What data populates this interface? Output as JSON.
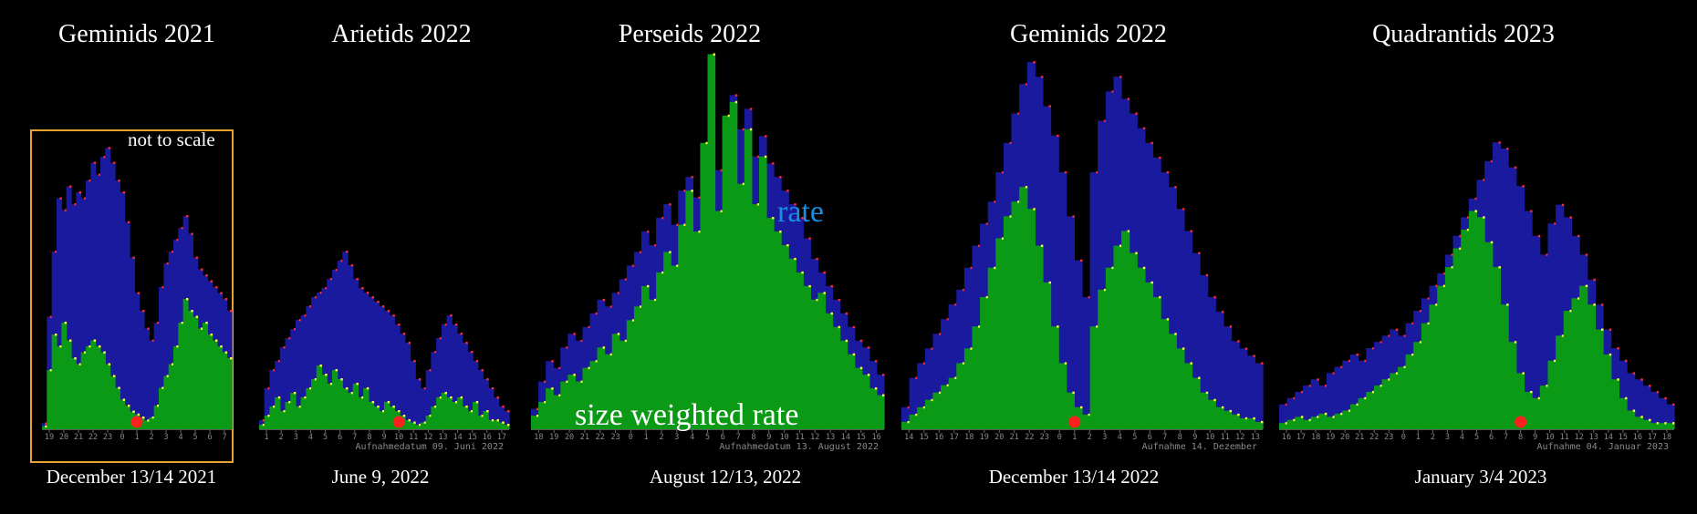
{
  "annotations": {
    "not_to_scale": "not to scale",
    "rate": "rate",
    "size_weighted_rate": "size weighted rate"
  },
  "colors": {
    "background": "#000000",
    "rate": "#1a1a9e",
    "size_weighted_rate": "#0a9a16",
    "rate_point": "#ff2a2a",
    "swr_point": "#ffff40",
    "marker": "#ff1f1f",
    "frame": "#e8a030",
    "rate_label": "#1a8fe0"
  },
  "chart_data": [
    {
      "type": "area",
      "title": "Geminids 2021",
      "date": "December 13/14 2021",
      "caption": "",
      "x_ticks": [
        "19",
        "20",
        "21",
        "22",
        "23",
        "0",
        "1",
        "2",
        "3",
        "4",
        "5",
        "6",
        "7"
      ],
      "series": [
        {
          "values": [
            2,
            38,
            60,
            78,
            74,
            82,
            76,
            80,
            78,
            84,
            90,
            86,
            92,
            95,
            90,
            84,
            80,
            70,
            58,
            46,
            40,
            34,
            30,
            36,
            48,
            56,
            60,
            64,
            68,
            72,
            66,
            58,
            54,
            52,
            50,
            48,
            46,
            44,
            40
          ]
        },
        {
          "values": [
            1,
            20,
            32,
            28,
            36,
            30,
            24,
            22,
            26,
            28,
            30,
            28,
            26,
            22,
            18,
            14,
            10,
            8,
            6,
            5,
            4,
            3,
            4,
            8,
            14,
            18,
            22,
            28,
            36,
            44,
            40,
            38,
            34,
            36,
            32,
            30,
            28,
            26,
            24
          ]
        }
      ],
      "marker": {
        "x": "1"
      },
      "frame": true
    },
    {
      "type": "area",
      "title": "Arietids 2022",
      "date": "June 9, 2022",
      "caption": "Aufnahmedatum 09. Juni 2022",
      "x_ticks": [
        "1",
        "2",
        "3",
        "4",
        "5",
        "6",
        "7",
        "8",
        "9",
        "10",
        "11",
        "12",
        "13",
        "14",
        "15",
        "16",
        "17"
      ],
      "series": [
        {
          "values": [
            4,
            18,
            26,
            30,
            36,
            40,
            44,
            48,
            50,
            54,
            58,
            60,
            62,
            66,
            70,
            74,
            78,
            72,
            66,
            62,
            60,
            58,
            56,
            54,
            52,
            50,
            46,
            42,
            38,
            30,
            22,
            18,
            26,
            34,
            40,
            46,
            50,
            46,
            42,
            38,
            34,
            30,
            26,
            22,
            18,
            14,
            10,
            8
          ]
        },
        {
          "values": [
            2,
            6,
            10,
            14,
            8,
            12,
            16,
            10,
            14,
            18,
            22,
            28,
            24,
            20,
            26,
            22,
            18,
            16,
            20,
            14,
            18,
            12,
            10,
            8,
            12,
            10,
            8,
            6,
            4,
            3,
            2,
            3,
            6,
            10,
            14,
            16,
            14,
            12,
            14,
            10,
            8,
            12,
            6,
            8,
            4,
            4,
            3,
            2
          ]
        }
      ],
      "marker": {
        "x": "10"
      },
      "frame": false
    },
    {
      "type": "area",
      "title": "Perseids 2022",
      "date": "August 12/13, 2022",
      "caption": "Aufnahmedatum 13. August 2022",
      "x_ticks": [
        "18",
        "19",
        "20",
        "21",
        "22",
        "23",
        "0",
        "1",
        "2",
        "3",
        "4",
        "5",
        "6",
        "7",
        "8",
        "9",
        "10",
        "11",
        "12",
        "13",
        "14",
        "15",
        "16"
      ],
      "series": [
        {
          "values": [
            6,
            14,
            20,
            18,
            24,
            28,
            26,
            30,
            34,
            38,
            36,
            40,
            44,
            48,
            52,
            58,
            54,
            62,
            66,
            60,
            70,
            74,
            68,
            80,
            86,
            76,
            92,
            98,
            88,
            94,
            80,
            86,
            78,
            74,
            70,
            66,
            62,
            56,
            50,
            46,
            42,
            38,
            34,
            30,
            26,
            24,
            20,
            16
          ]
        },
        {
          "values": [
            4,
            8,
            12,
            10,
            14,
            16,
            14,
            18,
            20,
            24,
            22,
            28,
            26,
            32,
            36,
            42,
            38,
            46,
            52,
            48,
            60,
            70,
            58,
            84,
            110,
            64,
            92,
            96,
            72,
            88,
            66,
            80,
            62,
            58,
            54,
            50,
            46,
            42,
            38,
            40,
            34,
            30,
            26,
            22,
            18,
            16,
            12,
            10
          ]
        }
      ],
      "marker": null,
      "frame": false
    },
    {
      "type": "area",
      "title": "Geminids 2022",
      "date": "December 13/14 2022",
      "caption": "Aufnahme 14. Dezember",
      "x_ticks": [
        "14",
        "15",
        "16",
        "17",
        "18",
        "19",
        "20",
        "21",
        "22",
        "23",
        "0",
        "1",
        "2",
        "3",
        "4",
        "5",
        "6",
        "7",
        "8",
        "9",
        "10",
        "11",
        "12",
        "13"
      ],
      "series": [
        {
          "values": [
            6,
            14,
            18,
            22,
            26,
            30,
            34,
            38,
            44,
            50,
            56,
            62,
            70,
            78,
            86,
            94,
            100,
            96,
            88,
            80,
            70,
            58,
            46,
            36,
            70,
            84,
            92,
            96,
            90,
            86,
            82,
            78,
            74,
            70,
            66,
            60,
            54,
            48,
            42,
            36,
            32,
            28,
            24,
            22,
            20,
            18
          ]
        },
        {
          "values": [
            2,
            4,
            6,
            8,
            10,
            12,
            14,
            18,
            22,
            28,
            36,
            44,
            52,
            58,
            62,
            66,
            60,
            50,
            40,
            28,
            18,
            10,
            6,
            4,
            28,
            38,
            44,
            50,
            54,
            48,
            44,
            40,
            36,
            30,
            26,
            22,
            18,
            14,
            10,
            8,
            6,
            5,
            4,
            3,
            3,
            2
          ]
        }
      ],
      "marker": {
        "x": "1"
      },
      "frame": false
    },
    {
      "type": "area",
      "title": "Quadrantids 2023",
      "date": "January 3/4 2023",
      "caption": "Aufnahme 04. Januar 2023",
      "x_ticks": [
        "16",
        "17",
        "18",
        "19",
        "20",
        "21",
        "22",
        "23",
        "0",
        "1",
        "2",
        "3",
        "4",
        "5",
        "6",
        "7",
        "8",
        "9",
        "10",
        "11",
        "12",
        "13",
        "14",
        "15",
        "16",
        "17",
        "18"
      ],
      "series": [
        {
          "values": [
            8,
            10,
            12,
            14,
            16,
            14,
            18,
            20,
            22,
            24,
            22,
            26,
            28,
            30,
            32,
            30,
            34,
            38,
            42,
            46,
            50,
            56,
            62,
            68,
            74,
            80,
            86,
            92,
            90,
            84,
            78,
            70,
            62,
            56,
            66,
            72,
            68,
            62,
            56,
            48,
            40,
            32,
            26,
            22,
            18,
            16,
            14,
            12,
            10,
            8
          ]
        },
        {
          "values": [
            2,
            3,
            4,
            3,
            4,
            5,
            4,
            5,
            6,
            8,
            10,
            12,
            14,
            16,
            18,
            20,
            24,
            28,
            34,
            40,
            46,
            52,
            58,
            64,
            70,
            68,
            60,
            52,
            40,
            28,
            18,
            12,
            10,
            14,
            22,
            30,
            38,
            42,
            46,
            40,
            32,
            24,
            16,
            10,
            6,
            4,
            3,
            2,
            2,
            2
          ]
        }
      ],
      "marker": {
        "x": "8"
      },
      "frame": false
    }
  ]
}
